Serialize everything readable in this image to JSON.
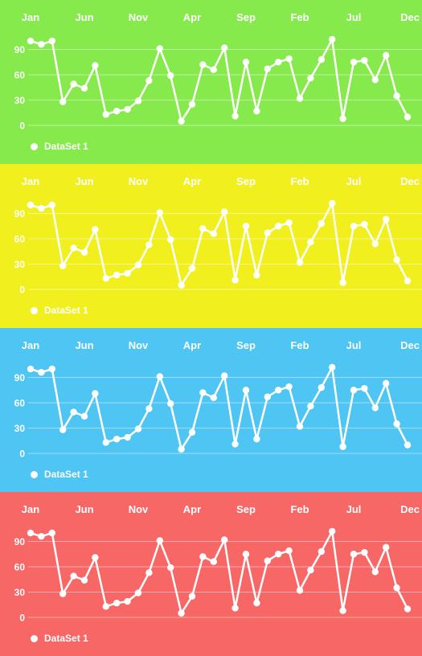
{
  "chart_data": [
    {
      "type": "line",
      "background": "#86e94c",
      "x_ticks": [
        "Jan",
        "Jun",
        "Nov",
        "Apr",
        "Sep",
        "Feb",
        "Jul",
        "Dec"
      ],
      "y_ticks": [
        "0",
        "30",
        "60",
        "90"
      ],
      "ylim": [
        0,
        100
      ],
      "grid": true,
      "legend": "bottom-left",
      "series": [
        {
          "name": "DataSet 1",
          "color": "#ffffff",
          "values": [
            100,
            96,
            100,
            28,
            49,
            44,
            71,
            13,
            17,
            19,
            29,
            53,
            91,
            59,
            5,
            25,
            72,
            66,
            92,
            11,
            75,
            17,
            67,
            75,
            79,
            32,
            56,
            78,
            102,
            8,
            75,
            77,
            54,
            83,
            35,
            10
          ]
        }
      ]
    },
    {
      "type": "line",
      "background": "#f1f01e",
      "x_ticks": [
        "Jan",
        "Jun",
        "Nov",
        "Apr",
        "Sep",
        "Feb",
        "Jul",
        "Dec"
      ],
      "y_ticks": [
        "0",
        "30",
        "60",
        "90"
      ],
      "ylim": [
        0,
        100
      ],
      "grid": true,
      "legend": "bottom-left",
      "series": [
        {
          "name": "DataSet 1",
          "color": "#ffffff",
          "values": [
            100,
            96,
            100,
            28,
            49,
            44,
            71,
            13,
            17,
            19,
            29,
            53,
            91,
            59,
            5,
            25,
            72,
            66,
            92,
            11,
            75,
            17,
            67,
            75,
            79,
            32,
            56,
            78,
            102,
            8,
            75,
            77,
            54,
            83,
            35,
            10
          ]
        }
      ]
    },
    {
      "type": "line",
      "background": "#4fc5f4",
      "x_ticks": [
        "Jan",
        "Jun",
        "Nov",
        "Apr",
        "Sep",
        "Feb",
        "Jul",
        "Dec"
      ],
      "y_ticks": [
        "0",
        "30",
        "60",
        "90"
      ],
      "ylim": [
        0,
        100
      ],
      "grid": true,
      "legend": "bottom-left",
      "series": [
        {
          "name": "DataSet 1",
          "color": "#ffffff",
          "values": [
            100,
            96,
            100,
            28,
            49,
            44,
            71,
            13,
            17,
            19,
            29,
            53,
            91,
            59,
            5,
            25,
            72,
            66,
            92,
            11,
            75,
            17,
            67,
            75,
            79,
            32,
            56,
            78,
            102,
            8,
            75,
            77,
            54,
            83,
            35,
            10
          ]
        }
      ]
    },
    {
      "type": "line",
      "background": "#f76766",
      "x_ticks": [
        "Jan",
        "Jun",
        "Nov",
        "Apr",
        "Sep",
        "Feb",
        "Jul",
        "Dec"
      ],
      "y_ticks": [
        "0",
        "30",
        "60",
        "90"
      ],
      "ylim": [
        0,
        100
      ],
      "grid": true,
      "legend": "bottom-left",
      "series": [
        {
          "name": "DataSet 1",
          "color": "#ffffff",
          "values": [
            100,
            96,
            100,
            28,
            49,
            44,
            71,
            13,
            17,
            19,
            29,
            53,
            91,
            59,
            5,
            25,
            72,
            66,
            92,
            11,
            75,
            17,
            67,
            75,
            79,
            32,
            56,
            78,
            102,
            8,
            75,
            77,
            54,
            83,
            35,
            10
          ]
        }
      ]
    }
  ]
}
